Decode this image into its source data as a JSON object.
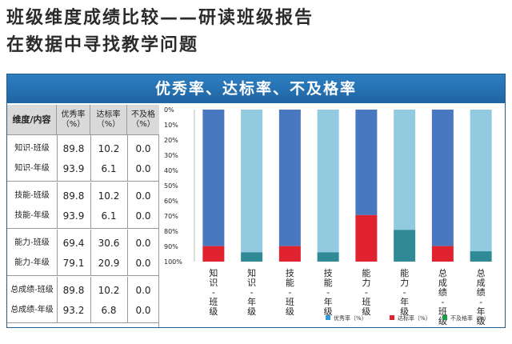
{
  "header": {
    "title": "班级维度成绩比较——研读班级报告",
    "subtitle": "在数据中寻找教学问题"
  },
  "table": {
    "headers": [
      "维度/内容",
      "优秀率\n（%）",
      "达标率\n（%）",
      "不及格\n（%）"
    ],
    "groups": [
      {
        "rows": [
          {
            "label": "知识-班级",
            "values": [
              "89.8",
              "10.2",
              "0.0"
            ]
          },
          {
            "label": "知识-年级",
            "values": [
              "93.9",
              "6.1",
              "0.0"
            ]
          }
        ]
      },
      {
        "rows": [
          {
            "label": "技能-班级",
            "values": [
              "89.8",
              "10.2",
              "0.0"
            ]
          },
          {
            "label": "技能-年级",
            "values": [
              "93.9",
              "6.1",
              "0.0"
            ]
          }
        ]
      },
      {
        "rows": [
          {
            "label": "能力-班级",
            "values": [
              "69.4",
              "30.6",
              "0.0"
            ]
          },
          {
            "label": "能力-年级",
            "values": [
              "79.1",
              "20.9",
              "0.0"
            ]
          }
        ]
      },
      {
        "rows": [
          {
            "label": "总成绩-班级",
            "values": [
              "89.8",
              "10.2",
              "0.0"
            ]
          },
          {
            "label": "总成绩-年级",
            "values": [
              "93.2",
              "6.8",
              "0.0"
            ]
          }
        ]
      }
    ]
  },
  "chart_data": {
    "type": "bar",
    "stacked": true,
    "title": "优秀率、达标率、不及格率",
    "categories": [
      "知识-班级",
      "知识-年级",
      "技能-班级",
      "技能-年级",
      "能力-班级",
      "能力-年级",
      "总成绩-班级",
      "总成绩-年级"
    ],
    "category_labels": [
      [
        "知",
        "识",
        "-",
        "班",
        "级"
      ],
      [
        "知",
        "识",
        "-",
        "年",
        "级"
      ],
      [
        "技",
        "能",
        "-",
        "班",
        "级"
      ],
      [
        "技",
        "能",
        "-",
        "年",
        "级"
      ],
      [
        "能",
        "力",
        "-",
        "班",
        "级"
      ],
      [
        "能",
        "力",
        "-",
        "年",
        "级"
      ],
      [
        "总",
        "成",
        "绩",
        "-",
        "班",
        "级"
      ],
      [
        "总",
        "成",
        "绩",
        "-",
        "年",
        "级"
      ]
    ],
    "series": [
      {
        "name": "优秀率（%）",
        "values": [
          89.8,
          93.9,
          89.8,
          93.9,
          69.4,
          79.1,
          89.8,
          93.2
        ]
      },
      {
        "name": "达标率（%）",
        "values": [
          10.2,
          6.1,
          10.2,
          6.1,
          30.6,
          20.9,
          10.2,
          6.8
        ]
      },
      {
        "name": "不及格率（%）",
        "values": [
          0,
          0,
          0,
          0,
          0,
          0,
          0,
          0
        ]
      }
    ],
    "y_ticks": [
      "0%",
      "10%",
      "20%",
      "30%",
      "40%",
      "50%",
      "60%",
      "70%",
      "80%",
      "90%",
      "100%"
    ],
    "ylim": [
      0,
      100
    ],
    "y_inverted": true,
    "legend_position": "bottom",
    "colors": {
      "class_excellent": "#4a78c0",
      "grade_excellent": "#92cbe0",
      "pass_class": "#e0232e",
      "pass_grade": "#2f8a96",
      "legend_excellent": "#2f9bd6",
      "legend_pass": "#e0232e",
      "legend_fail": "#1f9a4a"
    }
  }
}
